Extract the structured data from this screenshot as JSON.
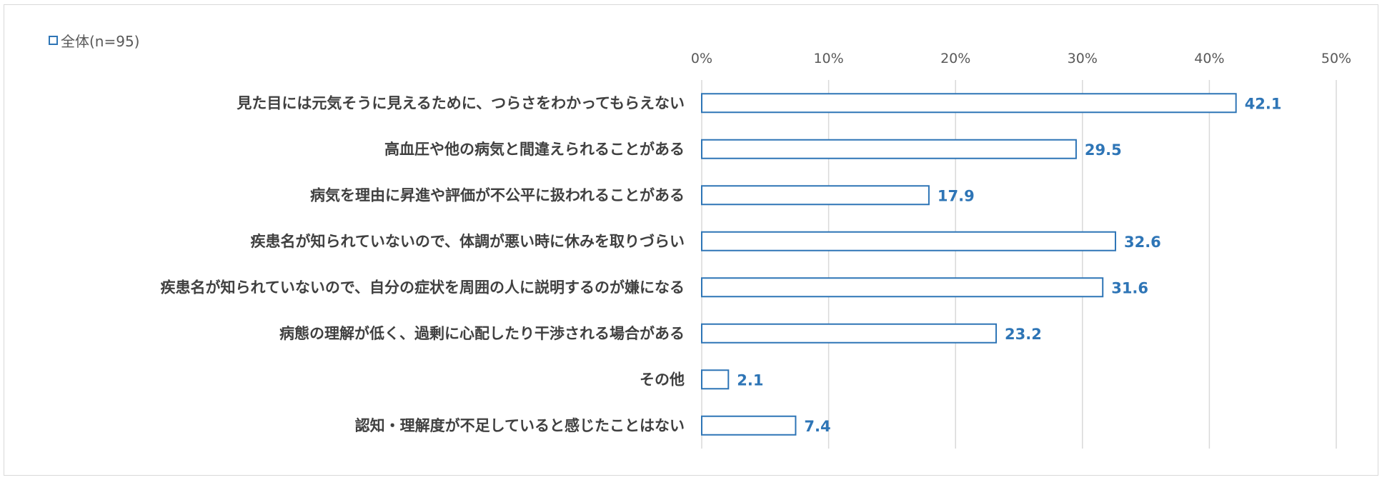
{
  "chart_data": {
    "type": "bar",
    "orientation": "horizontal",
    "legend_position": "top-left",
    "grid": true,
    "xlim": [
      0,
      50
    ],
    "tick_labels": [
      "0%",
      "10%",
      "20%",
      "30%",
      "40%",
      "50%"
    ],
    "categories": [
      "見た目には元気そうに見えるために、つらさをわかってもらえない",
      "高血圧や他の病気と間違えられることがある",
      "病気を理由に昇進や評価が不公平に扱われることがある",
      "疾患名が知られていないので、体調が悪い時に休みを取りづらい",
      "疾患名が知られていないので、自分の症状を周囲の人に説明するのが嫌になる",
      "病態の理解が低く、過剰に心配したり干渉される場合がある",
      "その他",
      "認知・理解度が不足していると感じたことはない"
    ],
    "series": [
      {
        "name": "全体(n=95)",
        "values": [
          42.1,
          29.5,
          17.9,
          32.6,
          31.6,
          23.2,
          2.1,
          7.4
        ],
        "value_labels": [
          "42.1",
          "29.5",
          "17.9",
          "32.6",
          "31.6",
          "23.2",
          "2.1",
          "7.4"
        ],
        "color": "#2e75b6"
      }
    ],
    "colors": {
      "bar_border": "#2e75b6",
      "bar_fill": "#ffffff",
      "grid": "#d9d9d9",
      "text": "#404040"
    }
  }
}
